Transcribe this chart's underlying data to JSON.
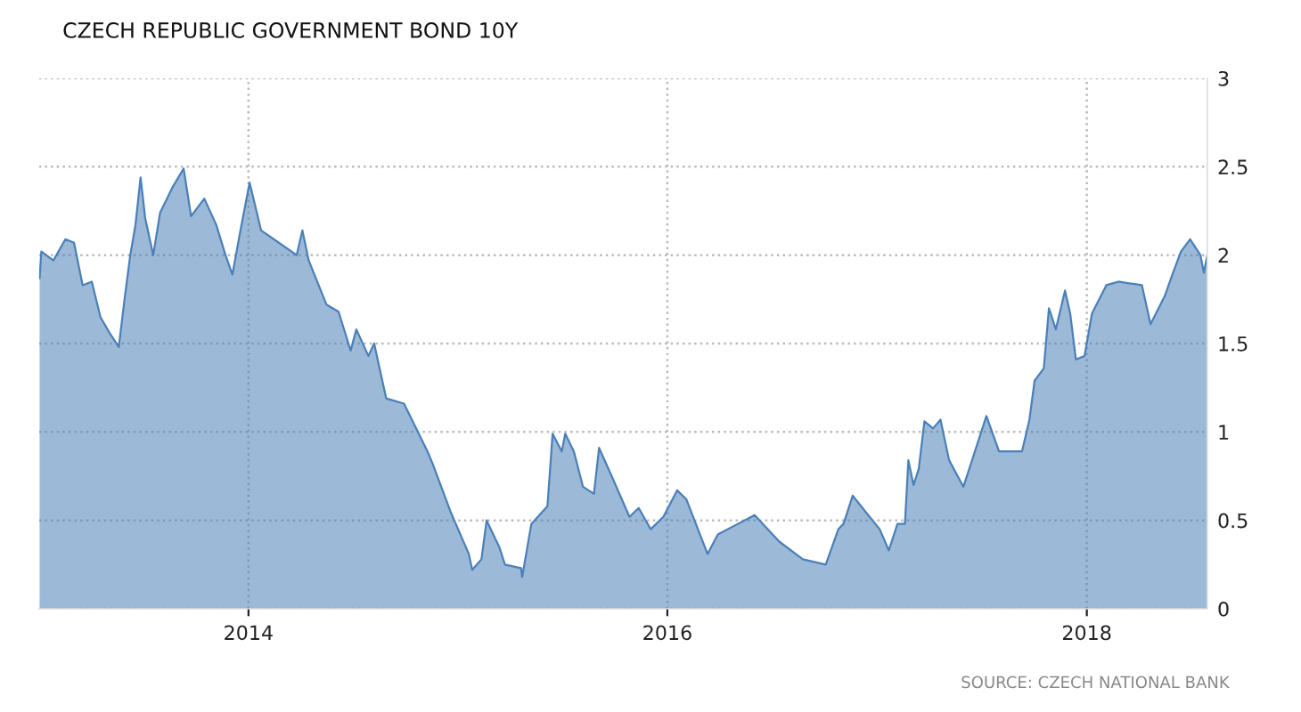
{
  "chart_data": {
    "type": "area",
    "title": "CZECH REPUBLIC GOVERNMENT BOND 10Y",
    "annotations": [
      "SOURCE: CZECH NATIONAL BANK"
    ],
    "x": [
      "2013-01-02",
      "2013-01-05",
      "2013-01-26",
      "2013-02-16",
      "2013-03-03",
      "2013-03-18",
      "2013-04-03",
      "2013-04-18",
      "2013-05-04",
      "2013-05-20",
      "2013-05-30",
      "2013-06-09",
      "2013-06-18",
      "2013-06-27",
      "2013-07-05",
      "2013-07-19",
      "2013-07-31",
      "2013-08-21",
      "2013-09-10",
      "2013-09-23",
      "2013-10-16",
      "2013-11-06",
      "2013-11-22",
      "2013-12-04",
      "2013-12-18",
      "2014-01-03",
      "2014-01-23",
      "2014-02-23",
      "2014-03-26",
      "2014-04-05",
      "2014-04-16",
      "2014-05-17",
      "2014-06-07",
      "2014-06-28",
      "2014-07-08",
      "2014-07-29",
      "2014-08-08",
      "2014-08-29",
      "2014-09-29",
      "2014-11-09",
      "2014-11-18",
      "2014-12-19",
      "2015-01-20",
      "2015-01-26",
      "2015-02-11",
      "2015-02-20",
      "2015-03-14",
      "2015-03-24",
      "2015-04-21",
      "2015-04-23",
      "2015-05-09",
      "2015-06-06",
      "2015-06-15",
      "2015-07-01",
      "2015-07-07",
      "2015-07-22",
      "2015-08-07",
      "2015-08-26",
      "2015-09-04",
      "2015-09-26",
      "2015-10-27",
      "2015-11-12",
      "2015-12-03",
      "2015-12-25",
      "2016-01-18",
      "2016-02-03",
      "2016-03-11",
      "2016-03-29",
      "2016-04-27",
      "2016-06-01",
      "2016-07-14",
      "2016-08-24",
      "2016-10-03",
      "2016-10-25",
      "2016-11-03",
      "2016-11-19",
      "2016-12-11",
      "2017-01-05",
      "2017-01-21",
      "2017-02-05",
      "2017-02-18",
      "2017-02-24",
      "2017-03-05",
      "2017-03-14",
      "2017-03-24",
      "2017-04-08",
      "2017-04-21",
      "2017-05-06",
      "2017-05-31",
      "2017-06-22",
      "2017-07-10",
      "2017-08-01",
      "2017-09-10",
      "2017-09-23",
      "2017-10-02",
      "2017-10-18",
      "2017-10-27",
      "2017-11-08",
      "2017-11-24",
      "2017-12-03",
      "2017-12-13",
      "2017-12-28",
      "2018-01-10",
      "2018-02-04",
      "2018-02-25",
      "2018-04-07",
      "2018-04-22",
      "2018-05-17",
      "2018-05-30",
      "2018-06-14",
      "2018-06-30",
      "2018-07-18",
      "2018-07-24",
      "2018-07-30"
    ],
    "series": [
      {
        "color": "#4a80b8",
        "values": [
          1.87,
          2.02,
          1.97,
          2.09,
          2.07,
          1.83,
          1.85,
          1.65,
          1.56,
          1.48,
          1.75,
          2.0,
          2.17,
          2.44,
          2.21,
          2.0,
          2.24,
          2.38,
          2.49,
          2.22,
          2.32,
          2.17,
          2.0,
          1.89,
          2.14,
          2.41,
          2.14,
          2.07,
          2.0,
          2.14,
          1.97,
          1.72,
          1.68,
          1.46,
          1.58,
          1.43,
          1.5,
          1.19,
          1.16,
          0.89,
          0.82,
          0.55,
          0.31,
          0.22,
          0.28,
          0.5,
          0.35,
          0.25,
          0.23,
          0.18,
          0.48,
          0.58,
          0.99,
          0.89,
          0.99,
          0.89,
          0.69,
          0.65,
          0.91,
          0.75,
          0.52,
          0.57,
          0.45,
          0.52,
          0.67,
          0.62,
          0.31,
          0.42,
          0.47,
          0.53,
          0.38,
          0.28,
          0.25,
          0.45,
          0.48,
          0.64,
          0.55,
          0.45,
          0.33,
          0.48,
          0.48,
          0.84,
          0.7,
          0.79,
          1.06,
          1.02,
          1.07,
          0.84,
          0.69,
          0.91,
          1.09,
          0.89,
          0.89,
          1.07,
          1.29,
          1.36,
          1.7,
          1.58,
          1.8,
          1.67,
          1.41,
          1.43,
          1.67,
          1.83,
          1.85,
          1.83,
          1.61,
          1.77,
          1.89,
          2.02,
          2.09,
          2.0,
          1.9,
          2.0
        ]
      }
    ],
    "xlim": [
      "2013-01-01",
      "2018-07-30"
    ],
    "xticks": [
      "2014",
      "2016",
      "2018"
    ],
    "ylim": [
      0,
      3
    ],
    "yticks": [
      0,
      0.5,
      1,
      1.5,
      2,
      2.5,
      3
    ],
    "grid": true,
    "line_style": "solid"
  }
}
